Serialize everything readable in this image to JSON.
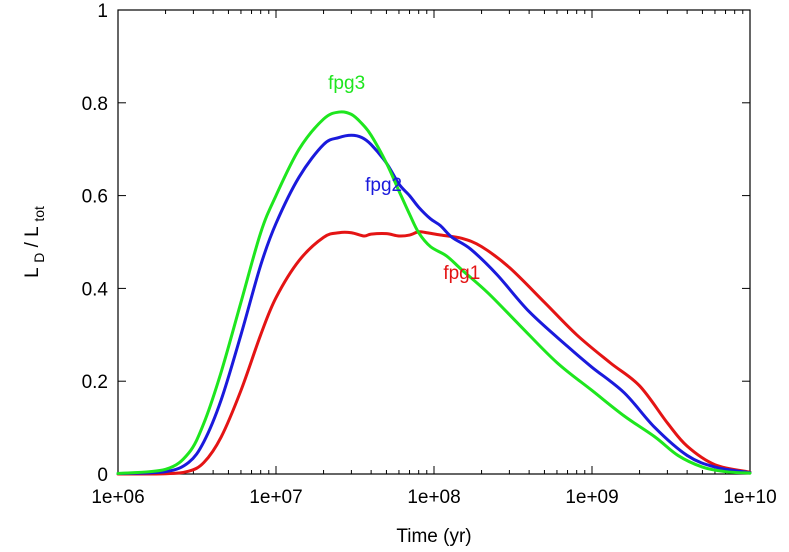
{
  "chart_data": {
    "type": "line",
    "title": "",
    "xlabel": "Time (yr)",
    "ylabel": {
      "base": "L",
      "num_sub": "D",
      "sep": "/",
      "den_base": "L",
      "den_sub": "tot"
    },
    "x_scale": "log",
    "xlim": [
      1000000,
      10000000000
    ],
    "ylim": [
      0,
      1
    ],
    "x_ticks": [
      {
        "value": 1000000,
        "label": "1e+06"
      },
      {
        "value": 10000000,
        "label": "1e+07"
      },
      {
        "value": 100000000,
        "label": "1e+08"
      },
      {
        "value": 1000000000,
        "label": "1e+09"
      },
      {
        "value": 10000000000,
        "label": "1e+10"
      }
    ],
    "y_ticks": [
      {
        "value": 0,
        "label": "0"
      },
      {
        "value": 0.2,
        "label": "0.2"
      },
      {
        "value": 0.4,
        "label": "0.4"
      },
      {
        "value": 0.6,
        "label": "0.6"
      },
      {
        "value": 0.8,
        "label": "0.8"
      },
      {
        "value": 1,
        "label": "1"
      }
    ],
    "grid": false,
    "legend": "none",
    "series": [
      {
        "name": "fpg1",
        "color": "#e41414",
        "label_at": {
          "x": 150000000,
          "y": 0.42
        },
        "points": [
          [
            1000000,
            0
          ],
          [
            2000000,
            0.0005
          ],
          [
            2800000,
            0.006
          ],
          [
            3500000,
            0.025
          ],
          [
            4500000,
            0.08
          ],
          [
            6000000,
            0.18
          ],
          [
            8000000,
            0.3
          ],
          [
            10000000,
            0.38
          ],
          [
            14000000,
            0.46
          ],
          [
            20000000,
            0.51
          ],
          [
            25000000,
            0.52
          ],
          [
            30000000,
            0.52
          ],
          [
            36000000,
            0.513
          ],
          [
            40000000,
            0.517
          ],
          [
            50000000,
            0.518
          ],
          [
            60000000,
            0.513
          ],
          [
            70000000,
            0.515
          ],
          [
            80000000,
            0.522
          ],
          [
            90000000,
            0.52
          ],
          [
            110000000,
            0.515
          ],
          [
            150000000,
            0.508
          ],
          [
            200000000,
            0.49
          ],
          [
            300000000,
            0.445
          ],
          [
            500000000,
            0.37
          ],
          [
            800000000,
            0.3
          ],
          [
            1300000000,
            0.24
          ],
          [
            2000000000,
            0.19
          ],
          [
            3000000000,
            0.11
          ],
          [
            4000000000,
            0.06
          ],
          [
            6000000000,
            0.02
          ],
          [
            10000000000,
            0.004
          ]
        ]
      },
      {
        "name": "fpg2",
        "color": "#1a1adc",
        "label_at": {
          "x": 48000000,
          "y": 0.61
        },
        "points": [
          [
            1000000,
            0.001
          ],
          [
            2000000,
            0.005
          ],
          [
            2800000,
            0.025
          ],
          [
            3500000,
            0.07
          ],
          [
            4500000,
            0.16
          ],
          [
            6000000,
            0.3
          ],
          [
            8000000,
            0.45
          ],
          [
            10000000,
            0.54
          ],
          [
            14000000,
            0.64
          ],
          [
            20000000,
            0.71
          ],
          [
            25000000,
            0.725
          ],
          [
            30000000,
            0.73
          ],
          [
            35000000,
            0.725
          ],
          [
            40000000,
            0.71
          ],
          [
            50000000,
            0.67
          ],
          [
            60000000,
            0.625
          ],
          [
            70000000,
            0.6
          ],
          [
            80000000,
            0.575
          ],
          [
            95000000,
            0.55
          ],
          [
            110000000,
            0.535
          ],
          [
            130000000,
            0.51
          ],
          [
            170000000,
            0.485
          ],
          [
            250000000,
            0.43
          ],
          [
            400000000,
            0.35
          ],
          [
            700000000,
            0.275
          ],
          [
            1000000000,
            0.23
          ],
          [
            1600000000,
            0.175
          ],
          [
            2500000000,
            0.1
          ],
          [
            4000000000,
            0.04
          ],
          [
            6000000000,
            0.015
          ],
          [
            10000000000,
            0.003
          ]
        ]
      },
      {
        "name": "fpg3",
        "color": "#1ee61e",
        "label_at": {
          "x": 28000000,
          "y": 0.83
        },
        "points": [
          [
            1000000,
            0.001
          ],
          [
            2000000,
            0.01
          ],
          [
            2800000,
            0.045
          ],
          [
            3500000,
            0.11
          ],
          [
            4500000,
            0.22
          ],
          [
            6000000,
            0.37
          ],
          [
            8000000,
            0.52
          ],
          [
            10000000,
            0.6
          ],
          [
            14000000,
            0.7
          ],
          [
            20000000,
            0.765
          ],
          [
            25000000,
            0.78
          ],
          [
            30000000,
            0.775
          ],
          [
            35000000,
            0.755
          ],
          [
            40000000,
            0.73
          ],
          [
            50000000,
            0.67
          ],
          [
            60000000,
            0.61
          ],
          [
            70000000,
            0.56
          ],
          [
            80000000,
            0.52
          ],
          [
            95000000,
            0.49
          ],
          [
            120000000,
            0.47
          ],
          [
            150000000,
            0.44
          ],
          [
            220000000,
            0.39
          ],
          [
            350000000,
            0.32
          ],
          [
            600000000,
            0.24
          ],
          [
            1000000000,
            0.18
          ],
          [
            1600000000,
            0.125
          ],
          [
            2500000000,
            0.08
          ],
          [
            3500000000,
            0.04
          ],
          [
            5000000000,
            0.015
          ],
          [
            7000000000,
            0.005
          ],
          [
            10000000000,
            0.002
          ]
        ]
      }
    ]
  }
}
